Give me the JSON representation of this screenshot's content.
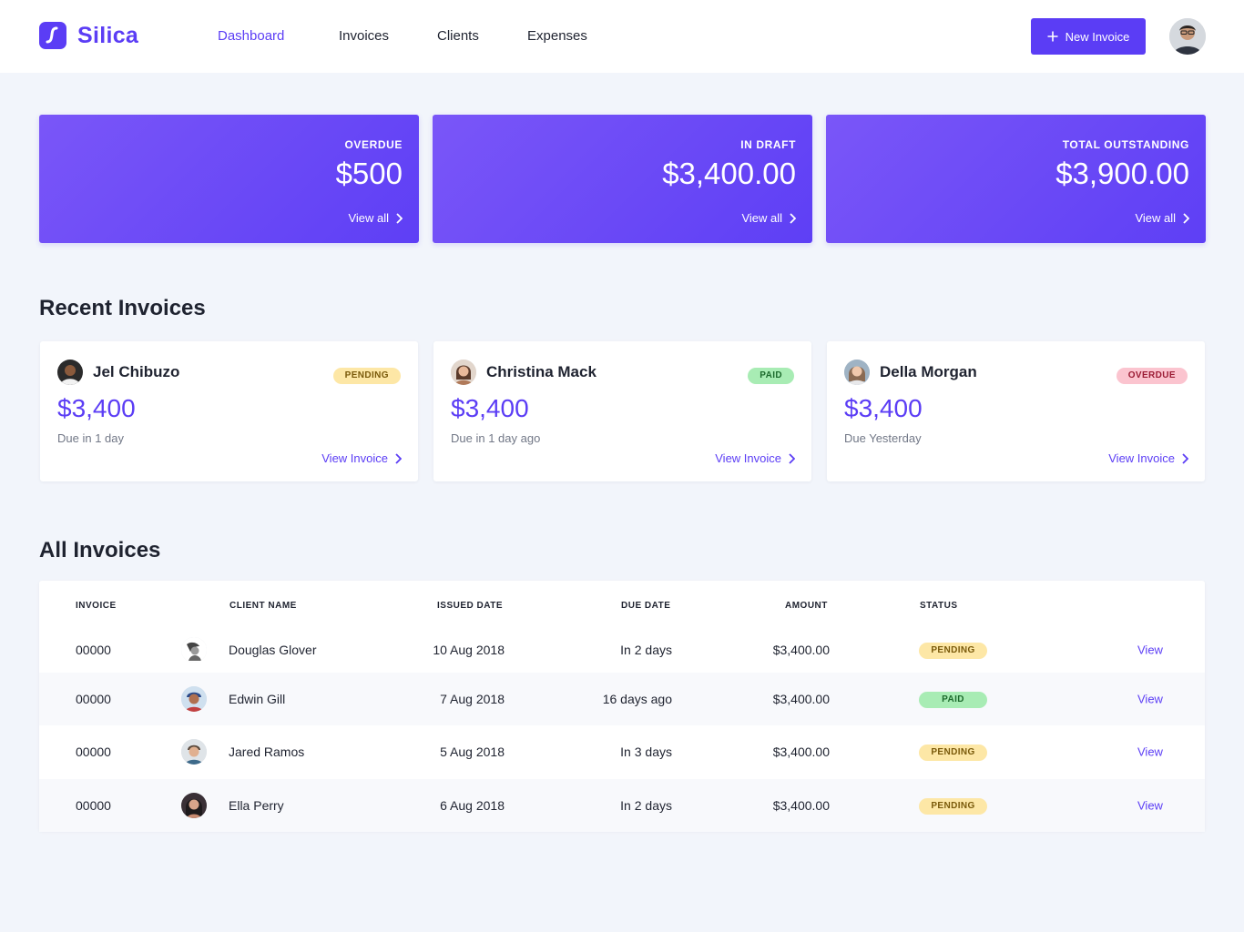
{
  "brand": {
    "name": "Silica",
    "accent": "#5b3df5"
  },
  "nav": {
    "items": [
      {
        "label": "Dashboard",
        "active": true
      },
      {
        "label": "Invoices",
        "active": false
      },
      {
        "label": "Clients",
        "active": false
      },
      {
        "label": "Expenses",
        "active": false
      }
    ]
  },
  "header": {
    "new_invoice_label": "New Invoice",
    "avatar": "user-avatar"
  },
  "summary": [
    {
      "label": "OVERDUE",
      "amount": "$500",
      "link": "View all"
    },
    {
      "label": "IN DRAFT",
      "amount": "$3,400.00",
      "link": "View all"
    },
    {
      "label": "TOTAL OUTSTANDING",
      "amount": "$3,900.00",
      "link": "View all"
    }
  ],
  "recent": {
    "title": "Recent Invoices",
    "items": [
      {
        "name": "Jel Chibuzo",
        "status": "PENDING",
        "amount": "$3,400",
        "due": "Due in 1 day",
        "link": "View Invoice"
      },
      {
        "name": "Christina Mack",
        "status": "PAID",
        "amount": "$3,400",
        "due": "Due in 1 day ago",
        "link": "View Invoice"
      },
      {
        "name": "Della Morgan",
        "status": "OVERDUE",
        "amount": "$3,400",
        "due": "Due Yesterday",
        "link": "View Invoice"
      }
    ]
  },
  "all": {
    "title": "All Invoices",
    "columns": {
      "invoice": "INVOICE",
      "client": "CLIENT NAME",
      "issued": "ISSUED DATE",
      "due": "DUE DATE",
      "amount": "AMOUNT",
      "status": "STATUS"
    },
    "rows": [
      {
        "invoice": "00000",
        "client": "Douglas Glover",
        "issued": "10 Aug 2018",
        "due": "In 2 days",
        "amount": "$3,400.00",
        "status": "PENDING",
        "view": "View"
      },
      {
        "invoice": "00000",
        "client": "Edwin Gill",
        "issued": "7 Aug 2018",
        "due": "16 days ago",
        "amount": "$3,400.00",
        "status": "PAID",
        "view": "View"
      },
      {
        "invoice": "00000",
        "client": "Jared Ramos",
        "issued": "5 Aug 2018",
        "due": "In 3 days",
        "amount": "$3,400.00",
        "status": "PENDING",
        "view": "View"
      },
      {
        "invoice": "00000",
        "client": "Ella Perry",
        "issued": "6 Aug 2018",
        "due": "In 2 days",
        "amount": "$3,400.00",
        "status": "PENDING",
        "view": "View"
      }
    ]
  }
}
